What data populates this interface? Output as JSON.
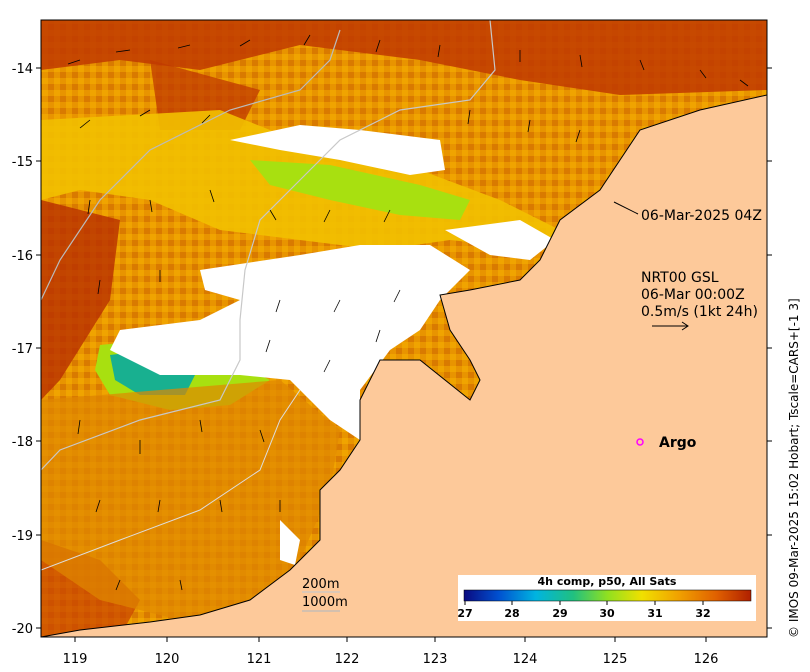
{
  "map": {
    "x_ticks": [
      "119",
      "120",
      "121",
      "122",
      "123",
      "124",
      "125",
      "126"
    ],
    "y_ticks": [
      "-14",
      "-15",
      "-16",
      "-17",
      "-18",
      "-19",
      "-20"
    ],
    "timestamp_label": "06-Mar-2025 04Z",
    "current_label": {
      "line1": "NRT00 GSL",
      "line2": "06-Mar 00:00Z",
      "line3": "0.5m/s (1kt 24h)"
    },
    "argo_label": "Argo",
    "depth_legend": [
      "200m",
      "1000m"
    ],
    "colorbar": {
      "title": "4h comp, p50, All Sats",
      "ticks": [
        "27",
        "28",
        "29",
        "30",
        "31",
        "32"
      ],
      "colors": [
        "#0a0a80",
        "#0050d0",
        "#00b4e0",
        "#20c080",
        "#90e020",
        "#f0e000",
        "#f0a000",
        "#e06000",
        "#b02000"
      ]
    },
    "credit": "© IMOS 09-Mar-2025 15:02 Hobart; Tscale=CARS+[-1 3]",
    "colors": {
      "land": "#fdc99a",
      "sst_hot": "#c03a00",
      "sst_warm": "#e88a00",
      "sst_mid": "#f2b400",
      "sst_cool": "#a8e010",
      "sst_cold": "#18b090",
      "cloud": "#ffffff"
    }
  }
}
